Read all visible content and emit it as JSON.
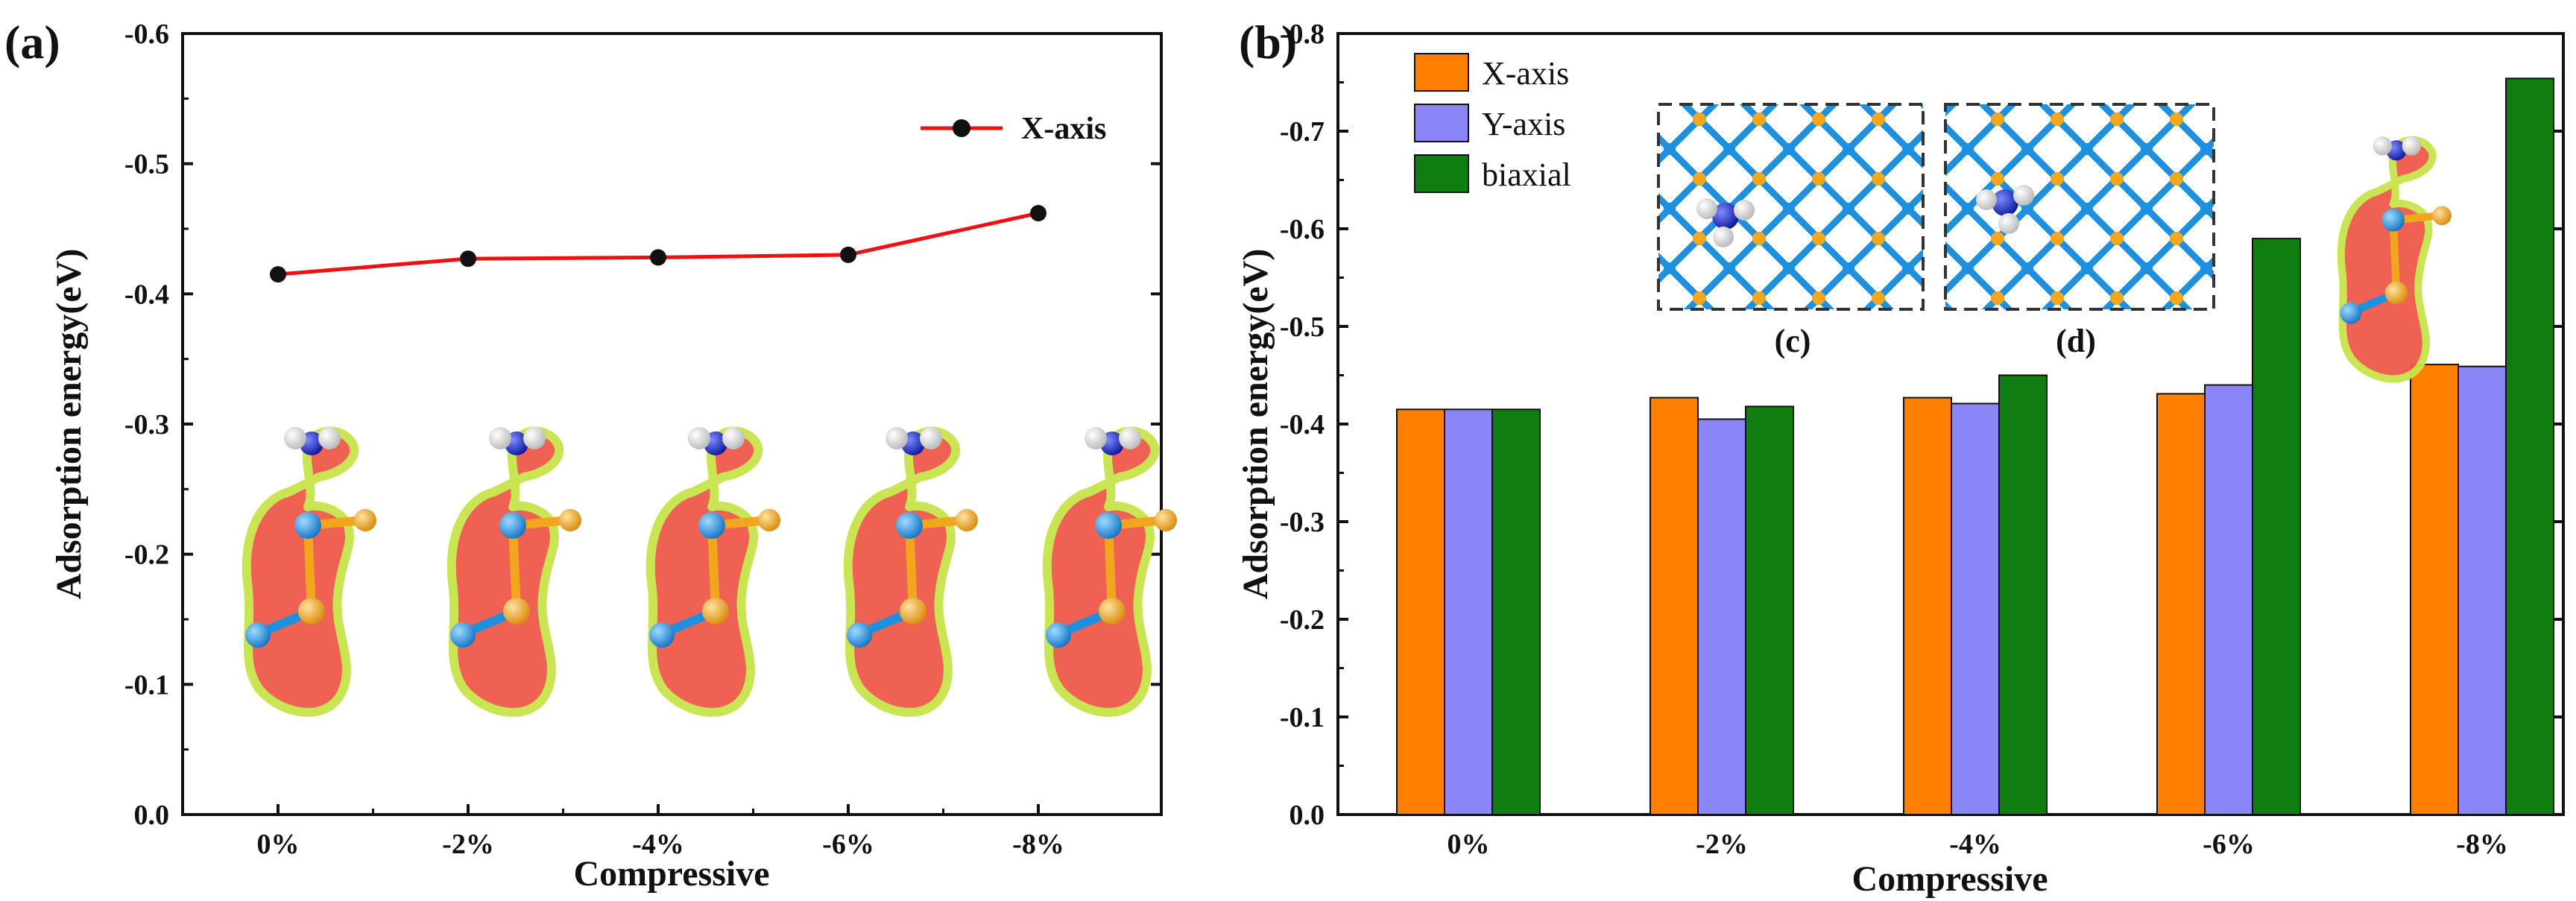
{
  "panel_labels": {
    "a": "(a)",
    "b": "(b)",
    "c": "(c)",
    "d": "(d)"
  },
  "colors": {
    "line": "#ee1111",
    "marker": "#111111",
    "x_axis": "#ff8000",
    "y_axis": "#8a86f7",
    "biaxial": "#0f7d0f",
    "density_outer": "#c8e44a",
    "density_inner": "#ef5a4a",
    "atom_ti": "#1e90e0",
    "atom_s": "#f2a61e",
    "atom_n": "#1020c8",
    "atom_h": "#f0f0f0"
  },
  "chart_data": [
    {
      "type": "line",
      "panel": "(a)",
      "xlabel": "Compressive",
      "ylabel": "Adsorption energy(eV)",
      "categories": [
        "0%",
        "-2%",
        "-4%",
        "-6%",
        "-8%"
      ],
      "ylim": [
        0.0,
        -0.6
      ],
      "yticks": [
        "0.0",
        "-0.1",
        "-0.2",
        "-0.3",
        "-0.4",
        "-0.5",
        "-0.6"
      ],
      "legend_position": "top-right",
      "series": [
        {
          "name": "X-axis",
          "values": [
            -0.415,
            -0.427,
            -0.428,
            -0.43,
            -0.462
          ]
        }
      ]
    },
    {
      "type": "bar",
      "panel": "(b)",
      "xlabel": "Compressive",
      "ylabel": "Adsorption energy(eV)",
      "categories": [
        "0%",
        "-2%",
        "-4%",
        "-6%",
        "-8%"
      ],
      "ylim": [
        0.0,
        -0.8
      ],
      "yticks": [
        "0.0",
        "-0.1",
        "-0.2",
        "-0.3",
        "-0.4",
        "-0.5",
        "-0.6",
        "-0.7",
        "-0.8"
      ],
      "legend_position": "top-left",
      "series": [
        {
          "name": "X-axis",
          "values": [
            -0.415,
            -0.427,
            -0.427,
            -0.431,
            -0.461
          ]
        },
        {
          "name": "Y-axis",
          "values": [
            -0.415,
            -0.405,
            -0.421,
            -0.44,
            -0.459
          ]
        },
        {
          "name": "biaxial",
          "values": [
            -0.415,
            -0.418,
            -0.45,
            -0.59,
            -0.754
          ]
        }
      ]
    }
  ]
}
